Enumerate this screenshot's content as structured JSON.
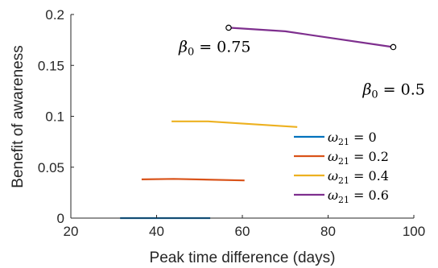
{
  "chart_data": {
    "type": "line",
    "xlabel": "Peak time difference (days)",
    "ylabel": "Benefit of awareness",
    "xlim": [
      20,
      100
    ],
    "ylim": [
      0,
      0.2
    ],
    "xticks": [
      "20",
      "40",
      "60",
      "80",
      "100"
    ],
    "yticks": [
      "0",
      "0.05",
      "0.1",
      "0.15",
      "0.2"
    ],
    "grid": false,
    "legend_position": "right",
    "series": [
      {
        "name": "ω21 = 0",
        "color": "#0072BD",
        "x": [
          31.5,
          52.5
        ],
        "y": [
          0.0,
          0.0
        ]
      },
      {
        "name": "ω21 = 0.2",
        "color": "#D95319",
        "x": [
          36.5,
          44,
          60.5
        ],
        "y": [
          0.038,
          0.0385,
          0.037
        ]
      },
      {
        "name": "ω21 = 0.4",
        "color": "#EDB120",
        "x": [
          43.5,
          52,
          72.8
        ],
        "y": [
          0.095,
          0.095,
          0.0895
        ]
      },
      {
        "name": "ω21 = 0.6",
        "color": "#7E2F8E",
        "x": [
          56.8,
          70,
          95.2
        ],
        "y": [
          0.187,
          0.1835,
          0.168
        ]
      }
    ],
    "legend": [
      {
        "sym": "ω",
        "sub": "21",
        "rest": " = 0"
      },
      {
        "sym": "ω",
        "sub": "21",
        "rest": " = 0.2"
      },
      {
        "sym": "ω",
        "sub": "21",
        "rest": " = 0.4"
      },
      {
        "sym": "ω",
        "sub": "21",
        "rest": " = 0.6"
      }
    ],
    "annotations": [
      {
        "sym": "β",
        "sub": "0",
        "rest": " = 0.75",
        "point": [
          56.8,
          0.187
        ]
      },
      {
        "sym": "β",
        "sub": "0",
        "rest": " = 0.5",
        "point": [
          95.2,
          0.168
        ]
      }
    ]
  }
}
